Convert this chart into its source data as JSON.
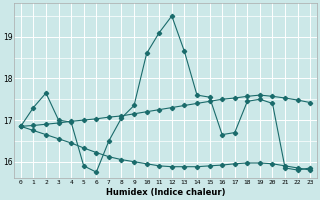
{
  "xlabel": "Humidex (Indice chaleur)",
  "bg_color": "#cce8e8",
  "grid_color": "#ffffff",
  "line_color": "#1a6b6b",
  "xlim": [
    -0.5,
    23.5
  ],
  "ylim": [
    15.6,
    19.8
  ],
  "yticks": [
    16,
    17,
    18,
    19
  ],
  "xticks": [
    0,
    1,
    2,
    3,
    4,
    5,
    6,
    7,
    8,
    9,
    10,
    11,
    12,
    13,
    14,
    15,
    16,
    17,
    18,
    19,
    20,
    21,
    22,
    23
  ],
  "series": [
    [
      16.85,
      17.3,
      17.65,
      17.0,
      16.95,
      15.9,
      15.75,
      16.5,
      17.05,
      17.35,
      18.6,
      19.1,
      19.5,
      18.65,
      17.6,
      17.55,
      16.65,
      16.7,
      17.45,
      17.5,
      17.4,
      15.85,
      15.8,
      15.85
    ],
    [
      16.85,
      16.87,
      16.9,
      16.93,
      16.97,
      17.0,
      17.03,
      17.07,
      17.1,
      17.15,
      17.2,
      17.25,
      17.3,
      17.35,
      17.4,
      17.45,
      17.5,
      17.53,
      17.57,
      17.6,
      17.57,
      17.53,
      17.48,
      17.42
    ],
    [
      16.85,
      16.75,
      16.65,
      16.55,
      16.45,
      16.33,
      16.22,
      16.12,
      16.05,
      16.0,
      15.95,
      15.9,
      15.88,
      15.88,
      15.88,
      15.9,
      15.92,
      15.95,
      15.97,
      15.97,
      15.95,
      15.9,
      15.85,
      15.8
    ]
  ],
  "marker": "D",
  "markersize": 2.2,
  "linewidth": 0.8
}
